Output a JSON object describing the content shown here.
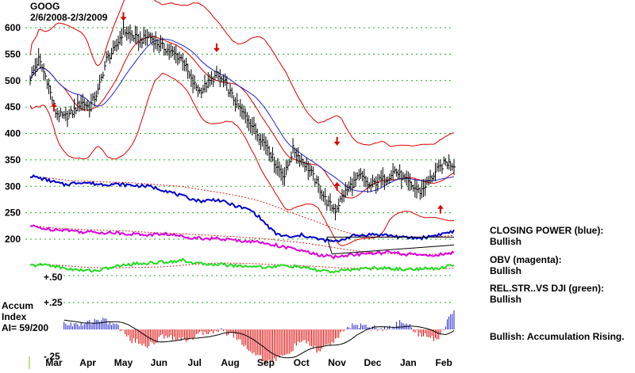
{
  "chart_data": {
    "type": "line",
    "title": "GOOG",
    "subtitle": "2/6/2008-2/3/2009",
    "price_ticks": [
      600,
      550,
      500,
      450,
      400,
      350,
      300,
      250,
      200
    ],
    "price_ylim": [
      185,
      625
    ],
    "month_labels": [
      "Mar",
      "Apr",
      "May",
      "Jun",
      "Jul",
      "Aug",
      "Sep",
      "Oct",
      "Nov",
      "Dec",
      "Jan",
      "Feb"
    ],
    "accum_ticks": [
      "+.50",
      "+.25",
      "-.25"
    ],
    "accum_title_lines": [
      "Accum",
      "Index",
      "AI= 59/200"
    ],
    "colors": {
      "price": "#000000",
      "bands": "#dd0000",
      "moving_average": "#2222cc",
      "closing_power": "#0000cc",
      "obv": "#dd00dd",
      "rel_strength": "#22dd22",
      "accum_positive": "#2222cc",
      "accum_negative": "#dd0000",
      "grid": "#22aa22",
      "arrows": "#dd0000"
    },
    "series": [
      {
        "name": "GOOG price",
        "x": [
          0,
          5,
          10,
          15,
          20,
          25,
          30,
          35,
          40,
          45,
          50,
          55,
          60,
          65,
          70,
          75,
          80,
          85,
          90,
          95,
          100,
          105,
          110,
          115,
          120,
          125,
          130,
          135,
          140,
          145,
          150,
          155,
          160,
          165,
          170,
          175,
          180,
          185,
          190,
          195,
          200,
          205,
          210,
          215,
          220,
          225,
          230,
          235,
          240,
          245,
          250
        ],
        "values": [
          505,
          540,
          500,
          440,
          430,
          440,
          460,
          450,
          480,
          540,
          560,
          595,
          585,
          575,
          585,
          570,
          560,
          550,
          540,
          500,
          480,
          495,
          510,
          495,
          465,
          440,
          420,
          395,
          375,
          340,
          320,
          370,
          350,
          330,
          300,
          270,
          255,
          285,
          305,
          320,
          300,
          310,
          315,
          330,
          315,
          300,
          290,
          310,
          330,
          345,
          340
        ]
      },
      {
        "name": "CLOSING POWER (blue)",
        "x": [
          0,
          10,
          20,
          30,
          40,
          50,
          60,
          70,
          80,
          90,
          100,
          110,
          120,
          130,
          135,
          140,
          145,
          150,
          155,
          160,
          170,
          180,
          190,
          200,
          210,
          220,
          230,
          240,
          250
        ],
        "values": [
          320,
          312,
          303,
          308,
          304,
          304,
          302,
          300,
          292,
          281,
          272,
          275,
          264,
          255,
          242,
          225,
          210,
          206,
          203,
          208,
          200,
          195,
          206,
          209,
          208,
          203,
          202,
          208,
          215
        ]
      },
      {
        "name": "OBV (magenta)",
        "x": [
          0,
          10,
          20,
          30,
          40,
          50,
          60,
          70,
          80,
          90,
          100,
          110,
          120,
          130,
          140,
          150,
          160,
          170,
          180,
          190,
          200,
          210,
          220,
          230,
          240,
          250
        ],
        "values": [
          225,
          219,
          218,
          214,
          213,
          212,
          210,
          208,
          210,
          205,
          202,
          201,
          198,
          196,
          192,
          185,
          178,
          170,
          166,
          171,
          172,
          175,
          172,
          170,
          170,
          174
        ]
      },
      {
        "name": "REL.STR..VS DJI (green)",
        "x": [
          0,
          10,
          20,
          30,
          40,
          50,
          60,
          70,
          80,
          90,
          100,
          110,
          120,
          130,
          140,
          150,
          160,
          170,
          180,
          190,
          200,
          210,
          220,
          230,
          240,
          250
        ],
        "values": [
          150,
          152,
          145,
          141,
          141,
          148,
          153,
          155,
          157,
          160,
          153,
          153,
          150,
          149,
          147,
          150,
          147,
          141,
          138,
          143,
          145,
          145,
          143,
          144,
          144,
          153
        ]
      }
    ],
    "accum_index": {
      "x": [
        0,
        10,
        20,
        30,
        40,
        50,
        60,
        70,
        80,
        90,
        100,
        110,
        120,
        130,
        140,
        150,
        160,
        170,
        180,
        190,
        200,
        210,
        220,
        230,
        240,
        250
      ],
      "values": [
        0.08,
        0.1,
        0.06,
        0.04,
        0.1,
        0.05,
        -0.1,
        -0.15,
        -0.05,
        -0.1,
        -0.05,
        0.0,
        -0.05,
        -0.2,
        -0.3,
        -0.25,
        -0.1,
        -0.2,
        -0.1,
        0.05,
        0.02,
        0.0,
        0.08,
        -0.05,
        -0.1,
        0.2
      ],
      "ylim": [
        -0.25,
        0.5
      ]
    },
    "legend": [
      {
        "label": "CLOSING POWER (blue):",
        "status": "Bullish"
      },
      {
        "label": "OBV (magenta):",
        "status": "Bullish"
      },
      {
        "label": "REL.STR..VS DJI (green):",
        "status": "Bullish"
      }
    ],
    "summary": "Bullish: Accumulation Rising."
  }
}
